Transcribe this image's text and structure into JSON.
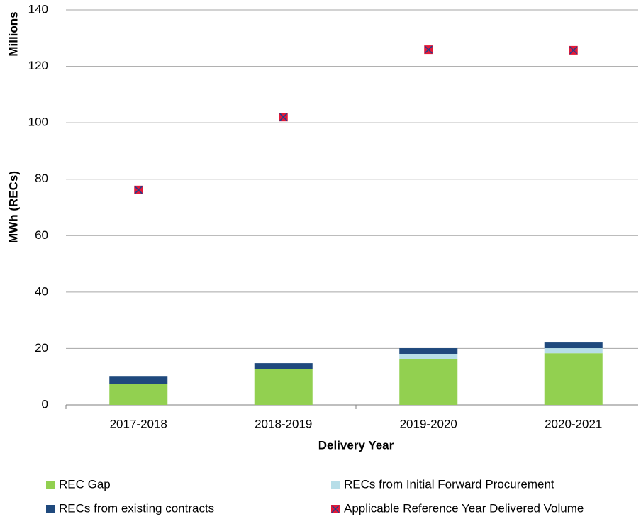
{
  "chart_data": {
    "type": "bar",
    "stacked": true,
    "y_unit_label": "Millions",
    "ylabel": "MWh (RECs)",
    "xlabel": "Delivery Year",
    "categories": [
      "2017-2018",
      "2018-2019",
      "2019-2020",
      "2020-2021"
    ],
    "series": [
      {
        "name": "REC Gap",
        "color": "#92d050",
        "values": [
          7.5,
          12.8,
          16.3,
          18.3
        ]
      },
      {
        "name": "RECs from Initial Forward Procurement",
        "color": "#b7dee8",
        "values": [
          0,
          0,
          1.8,
          1.8
        ]
      },
      {
        "name": "RECs from existing contracts",
        "color": "#1f497d",
        "values": [
          2.5,
          2,
          2,
          2
        ]
      },
      {
        "name": "Applicable Reference Year Delivered Volume",
        "type": "scatter",
        "color": "#e31937",
        "values": [
          76.2,
          102,
          125.9,
          125.7
        ]
      }
    ],
    "ylim": [
      0,
      140
    ],
    "yticks": [
      0,
      20,
      40,
      60,
      80,
      100,
      120,
      140
    ],
    "grid": true,
    "legend": "bottom"
  }
}
